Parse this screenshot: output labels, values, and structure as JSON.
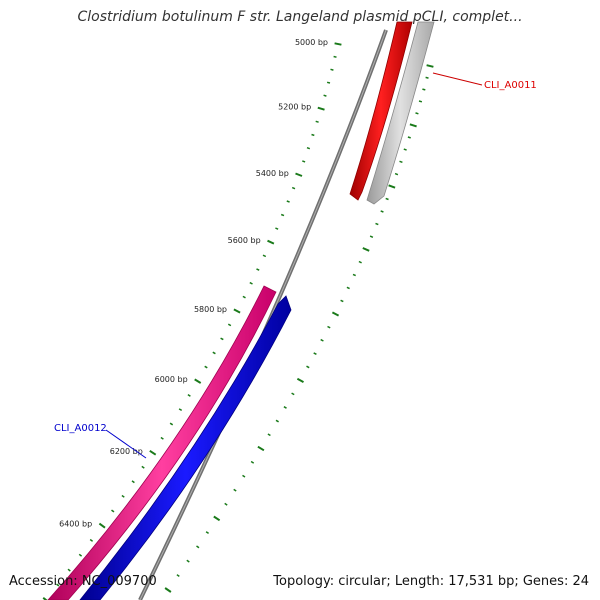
{
  "title": "Clostridium botulinum F str. Langeland plasmid pCLI, complet...",
  "footer": {
    "accession": "Accession: NC_009700",
    "summary": "Topology: circular; Length: 17,531 bp; Genes: 24"
  },
  "map": {
    "topology": "circular",
    "length_bp": 17531,
    "gene_count": 24,
    "tick_labels": [
      "5000 bp",
      "5200 bp",
      "5400 bp",
      "5600 bp",
      "5800 bp",
      "6000 bp",
      "6200 bp",
      "6400 bp"
    ],
    "genes": [
      {
        "name": "CLI_A0011",
        "strand": "forward",
        "color": "#ff0000",
        "label_color": "#dd0000"
      },
      {
        "name": "CLI_A0012",
        "strand": "forward",
        "color": "#ff1493",
        "label_color": "#0000cc"
      },
      {
        "name": "",
        "strand": "reverse",
        "color": "#0000ff"
      },
      {
        "name": "",
        "strand": "reverse",
        "color": "#c0c0c0"
      }
    ],
    "backbone_color": "#808080",
    "tick_color": "#1a7a1a"
  }
}
